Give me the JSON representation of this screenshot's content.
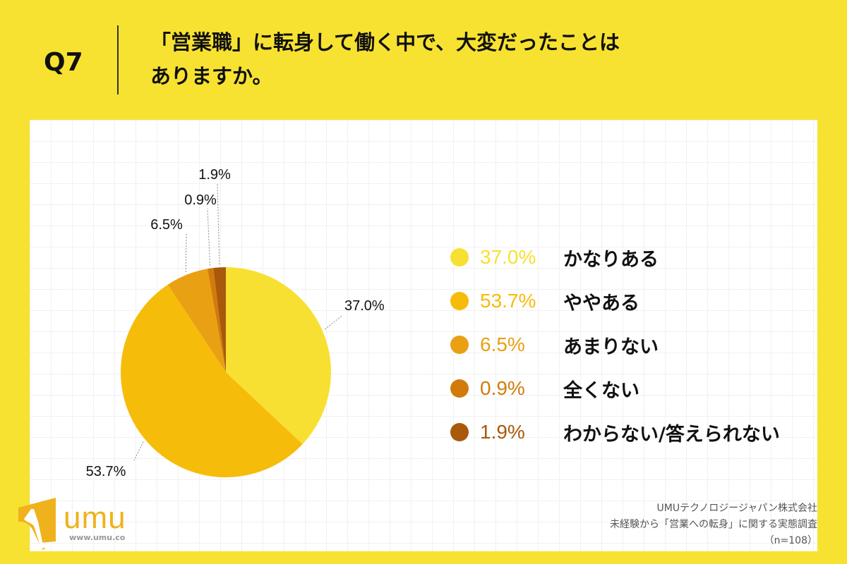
{
  "header": {
    "question": "Q7",
    "title_line1": "「営業職」に転身して働く中で、大変だったことは",
    "title_line2": "ありますか。"
  },
  "chart_data": {
    "type": "pie",
    "start": "top",
    "direction": "clockwise",
    "categories": [
      "かなりある",
      "ややある",
      "あまりない",
      "全くない",
      "わからない/答えられない"
    ],
    "values": [
      37.0,
      53.7,
      6.5,
      0.9,
      1.9
    ],
    "labels": [
      "37.0%",
      "53.7%",
      "6.5%",
      "0.9%",
      "1.9%"
    ],
    "colors": [
      "#F8E032",
      "#F6BC0A",
      "#E9A013",
      "#D27B0B",
      "#A8590B"
    ],
    "legend_position": "right"
  },
  "logo": {
    "text": "umu",
    "url": "www.umu.co"
  },
  "source": {
    "line1": "UMUテクノロジージャパン株式会社",
    "line2": "未経験から「営業への転身」に関する実態調査",
    "line3": "（n=108）"
  }
}
